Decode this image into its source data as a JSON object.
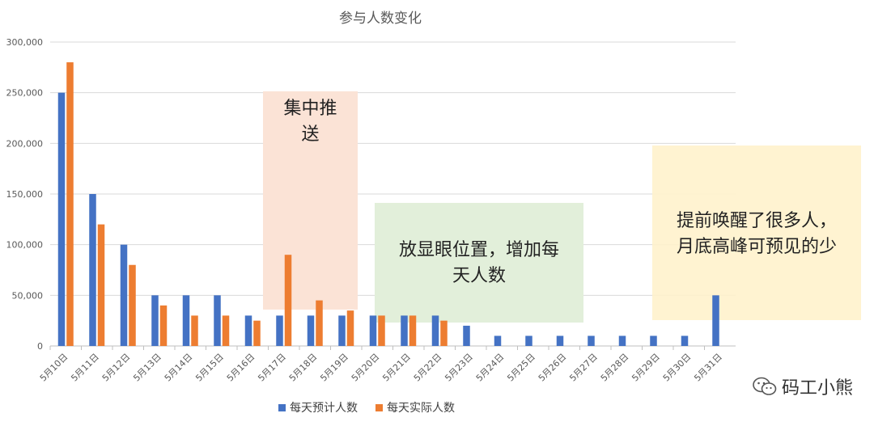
{
  "chart_data": {
    "type": "bar",
    "title": "参与人数变化",
    "categories": [
      "5月10日",
      "5月11日",
      "5月12日",
      "5月13日",
      "5月14日",
      "5月15日",
      "5月16日",
      "5月17日",
      "5月18日",
      "5月19日",
      "5月20日",
      "5月21日",
      "5月22日",
      "5月23日",
      "5月24日",
      "5月25日",
      "5月26日",
      "5月27日",
      "5月28日",
      "5月29日",
      "5月30日",
      "5月31日"
    ],
    "series": [
      {
        "name": "每天预计人数",
        "color": "#4472C4",
        "values": [
          250000,
          150000,
          100000,
          50000,
          50000,
          50000,
          30000,
          30000,
          30000,
          30000,
          30000,
          30000,
          30000,
          20000,
          10000,
          10000,
          10000,
          10000,
          10000,
          10000,
          10000,
          50000
        ]
      },
      {
        "name": "每天实际人数",
        "color": "#ED7D31",
        "values": [
          280000,
          120000,
          80000,
          40000,
          30000,
          30000,
          25000,
          90000,
          45000,
          35000,
          30000,
          30000,
          25000,
          null,
          null,
          null,
          null,
          null,
          null,
          null,
          null,
          null
        ]
      }
    ],
    "ylim": [
      0,
      300000
    ],
    "yticks": [
      "0",
      "50,000",
      "100,000",
      "150,000",
      "200,000",
      "250,000",
      "300,000"
    ],
    "grid": true,
    "legend": "bottom",
    "annotations": [
      {
        "lines": [
          "集中推",
          "送"
        ],
        "fill": "#FBE3D6"
      },
      {
        "lines": [
          "放显眼位置，增加每",
          "天人数"
        ],
        "fill": "#E2EFDA"
      },
      {
        "lines": [
          "提前唤醒了很多人，",
          "月底高峰可预见的少"
        ],
        "fill": "#FFF2CC"
      }
    ]
  },
  "watermark": {
    "text": "码工小熊",
    "icon": "wechat-icon"
  }
}
